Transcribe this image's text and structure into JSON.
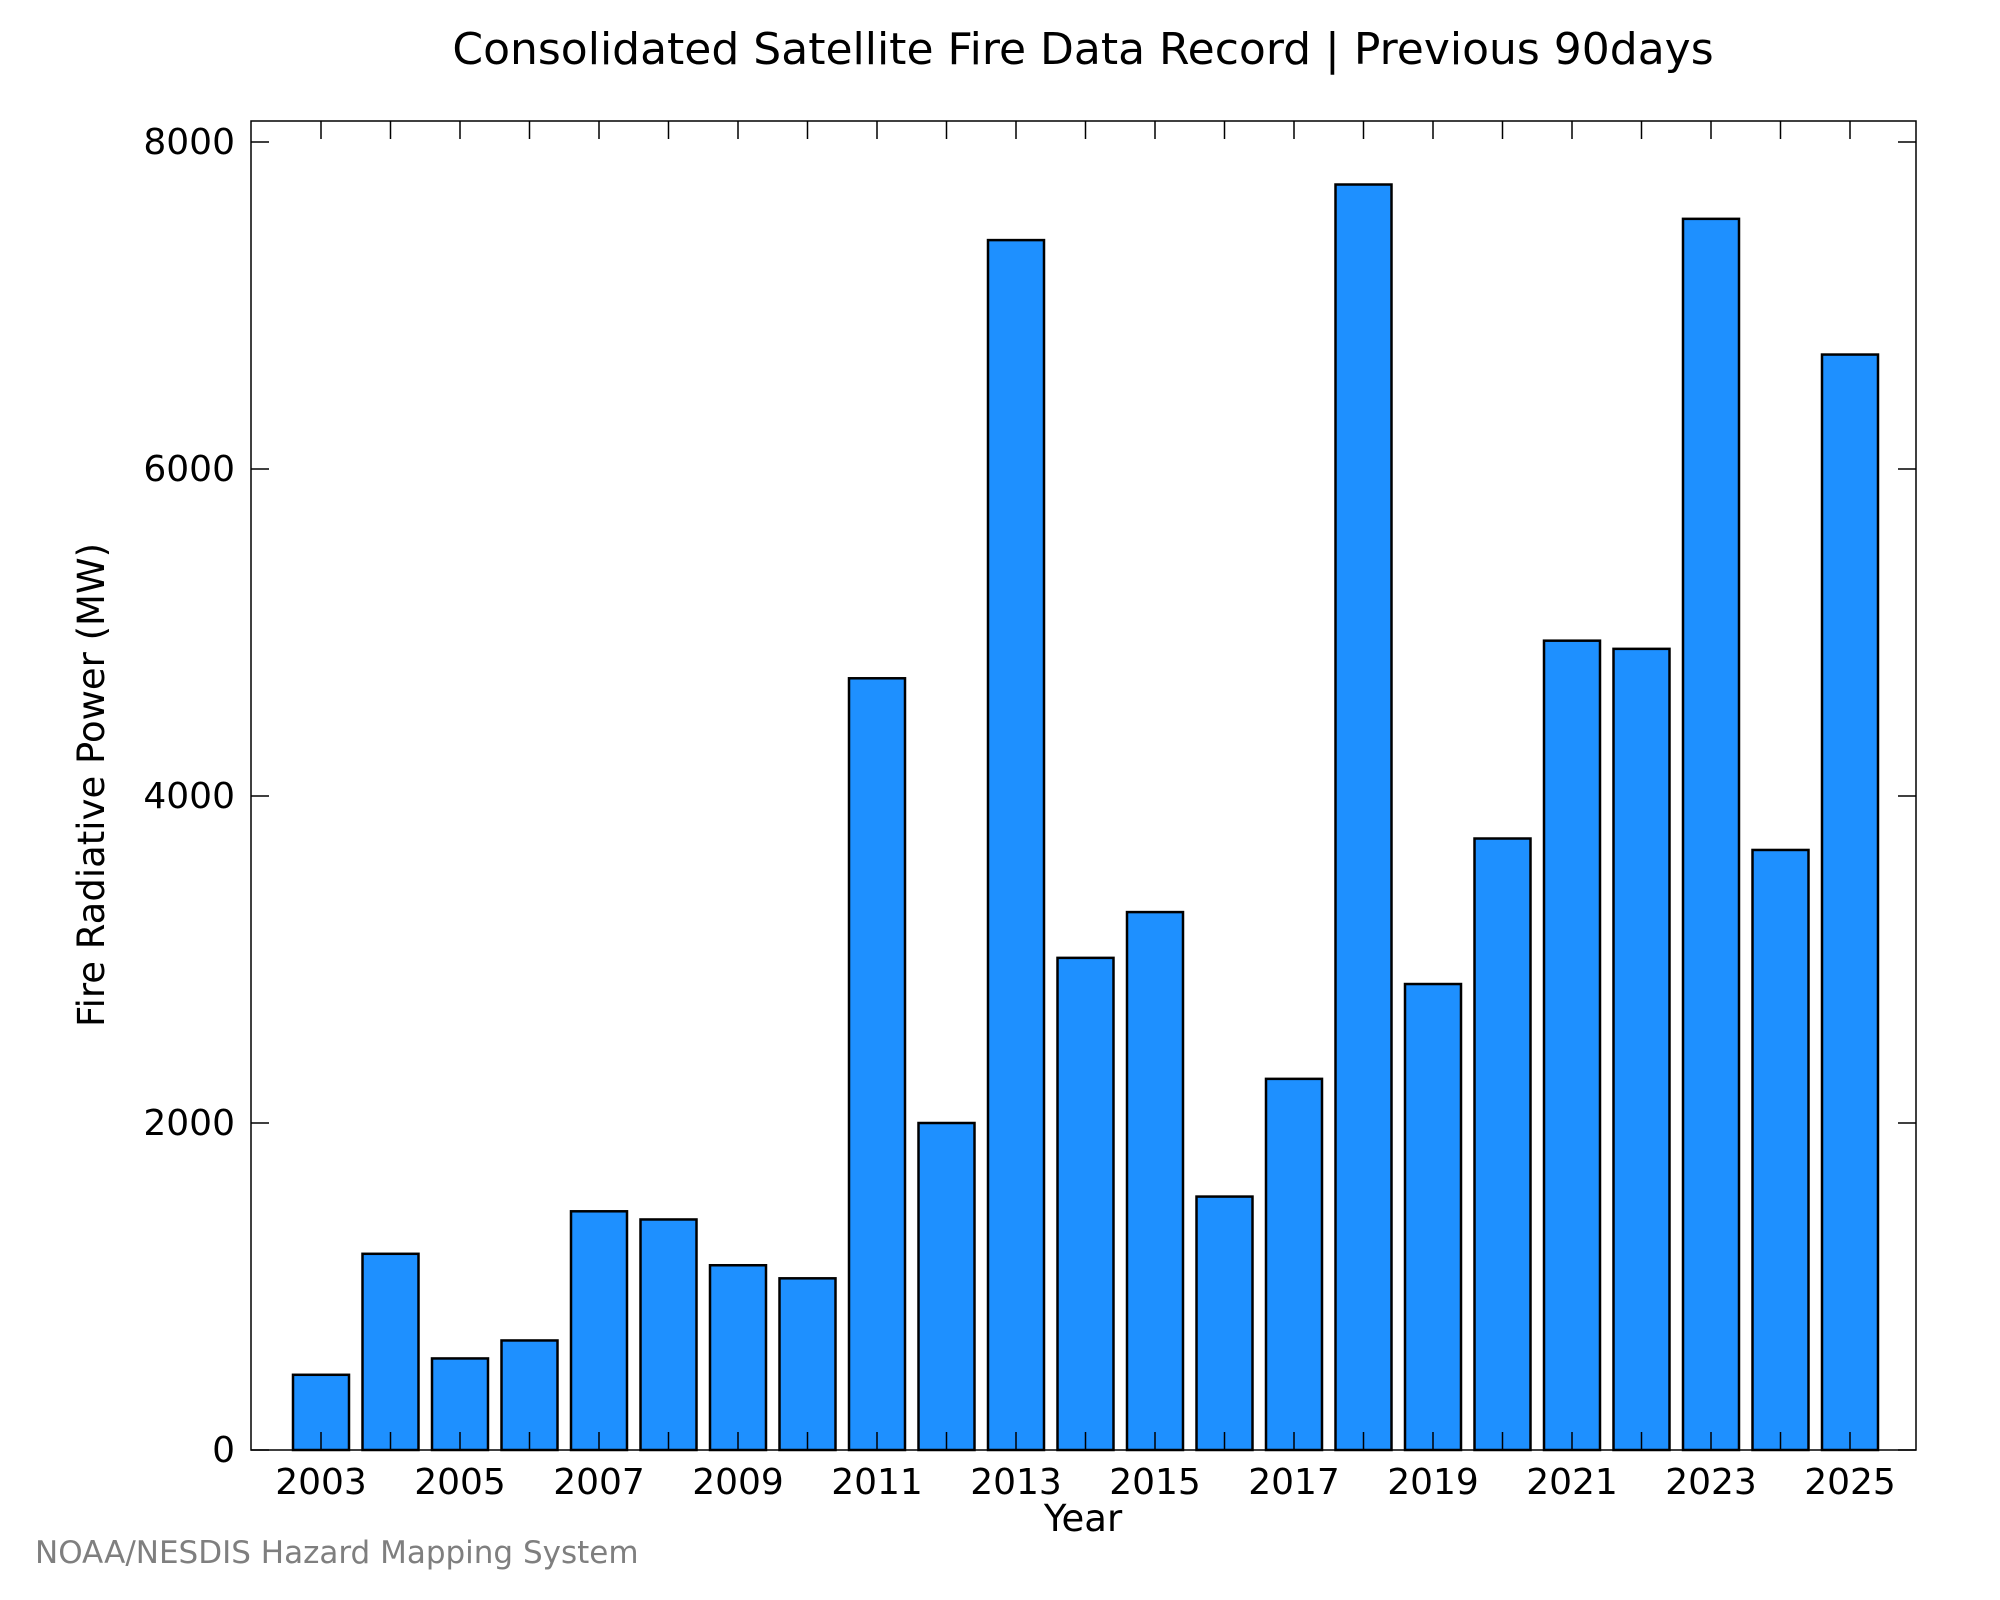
{
  "chart_data": {
    "type": "bar",
    "title": "Consolidated Satellite Fire Data Record | Previous 90days",
    "xlabel": "Year",
    "ylabel": "Fire Radiative Power (MW)",
    "categories": [
      "2003",
      "2004",
      "2005",
      "2006",
      "2007",
      "2008",
      "2009",
      "2010",
      "2011",
      "2012",
      "2013",
      "2014",
      "2015",
      "2016",
      "2017",
      "2018",
      "2019",
      "2020",
      "2021",
      "2022",
      "2023",
      "2024",
      "2025"
    ],
    "values": [
      460,
      1200,
      560,
      670,
      1460,
      1410,
      1130,
      1050,
      4720,
      2000,
      7400,
      3010,
      3290,
      1550,
      2270,
      7740,
      2850,
      3740,
      4950,
      4900,
      7530,
      3670,
      6700
    ],
    "x_tick_labels": [
      "2003",
      "2005",
      "2007",
      "2009",
      "2011",
      "2013",
      "2015",
      "2017",
      "2019",
      "2021",
      "2023",
      "2025"
    ],
    "y_tick_labels": [
      "0",
      "2000",
      "4000",
      "6000",
      "8000"
    ],
    "ylim": [
      0,
      8000
    ],
    "grid": false,
    "legend": "none",
    "colors": {
      "bar_fill": "#1e90ff",
      "bar_edge": "#000000",
      "axis": "#000000"
    }
  },
  "credit": "NOAA/NESDIS Hazard Mapping System"
}
